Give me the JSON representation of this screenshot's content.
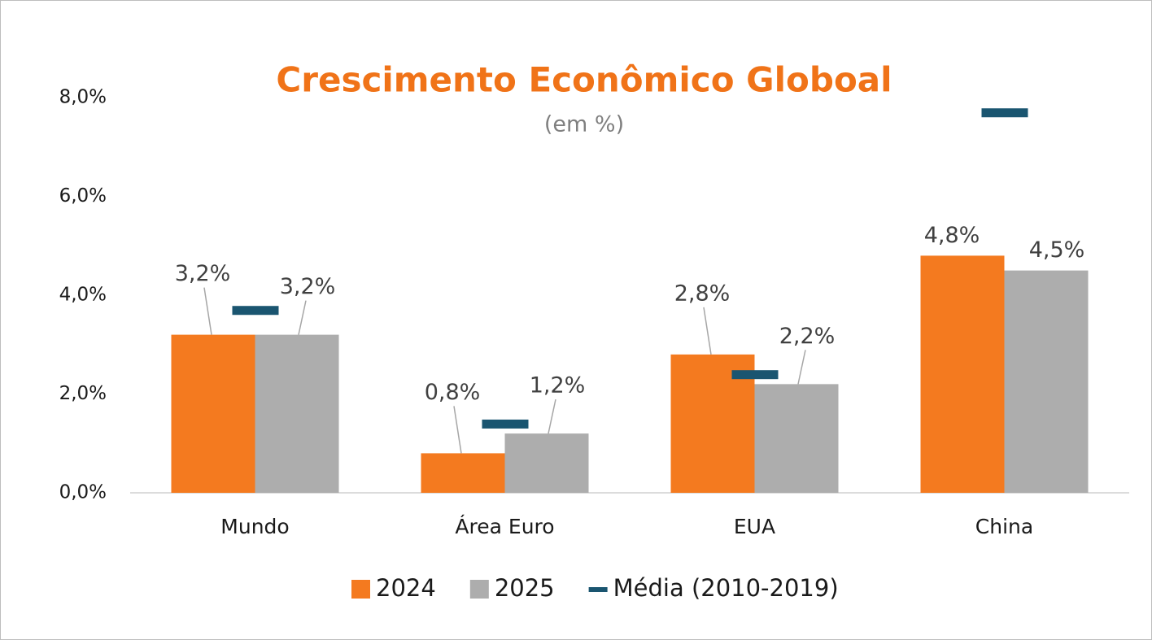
{
  "chart_data": {
    "type": "bar",
    "title": "Crescimento Econômico Globoal",
    "subtitle": "(em %)",
    "categories": [
      "Mundo",
      "Área Euro",
      "EUA",
      "China"
    ],
    "series": [
      {
        "name": "2024",
        "type": "bar",
        "color": "#f47a1f",
        "values": [
          3.2,
          0.8,
          2.8,
          4.8
        ],
        "value_labels": [
          "3,2%",
          "0,8%",
          "2,8%",
          "4,8%"
        ]
      },
      {
        "name": "2025",
        "type": "bar",
        "color": "#adadad",
        "values": [
          3.2,
          1.2,
          2.2,
          4.5
        ],
        "value_labels": [
          "3,2%",
          "1,2%",
          "2,2%",
          "4,5%"
        ]
      },
      {
        "name": "Média (2010-2019)",
        "type": "dash",
        "color": "#1a5570",
        "values": [
          3.7,
          1.4,
          2.4,
          7.7
        ]
      }
    ],
    "ylim": [
      0,
      8
    ],
    "yticks": [
      {
        "value": 0,
        "label": "0,0%"
      },
      {
        "value": 2,
        "label": "2,0%"
      },
      {
        "value": 4,
        "label": "4,0%"
      },
      {
        "value": 6,
        "label": "6,0%"
      },
      {
        "value": 8,
        "label": "8,0%"
      }
    ],
    "grid": false,
    "legend": "bottom"
  }
}
